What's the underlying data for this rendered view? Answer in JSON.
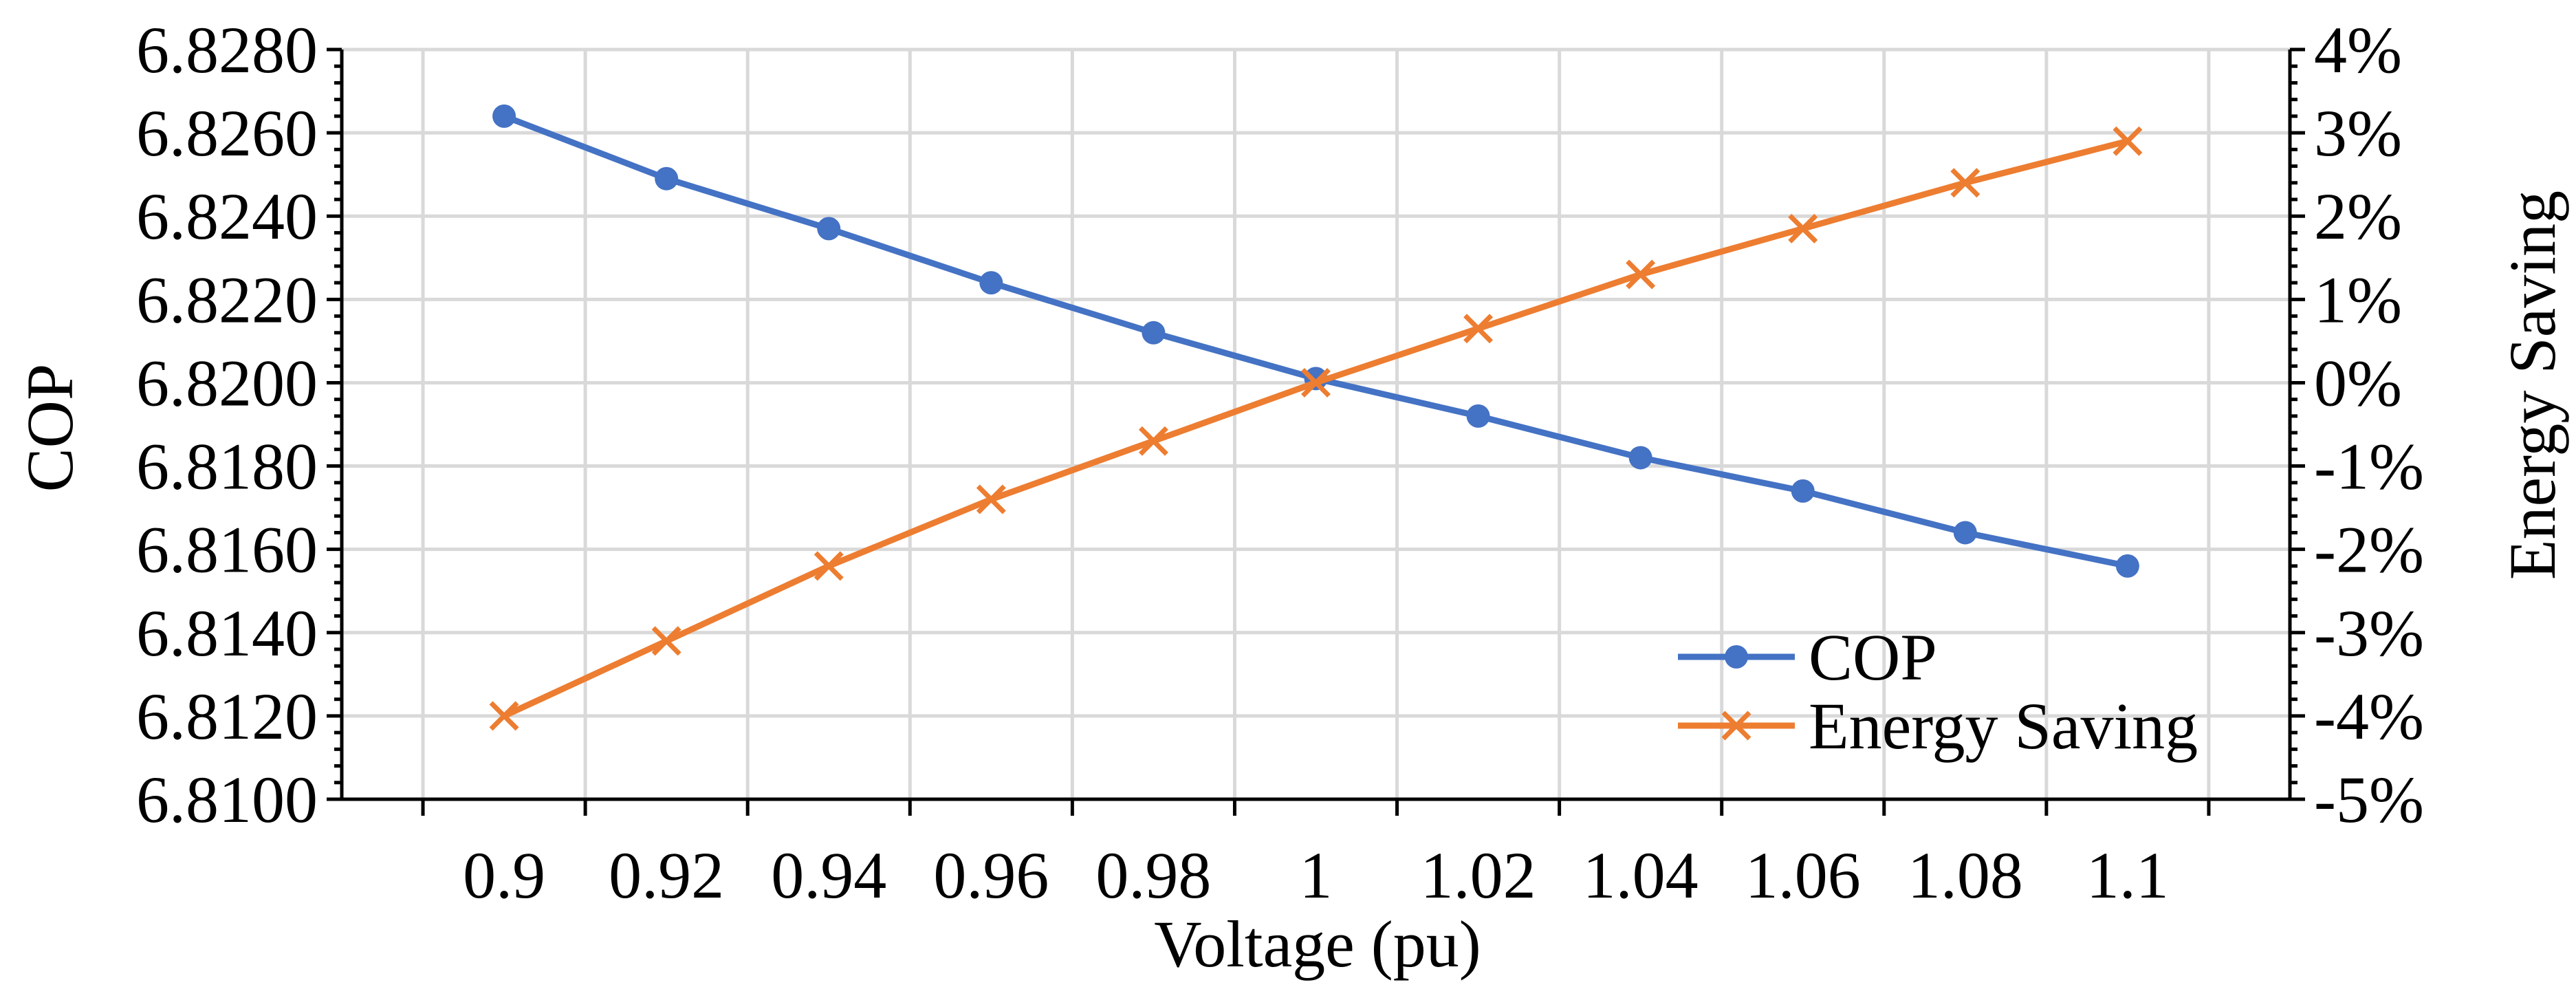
{
  "chart_data": {
    "type": "line",
    "title": "",
    "xlabel": "Voltage (pu)",
    "ylabel": "COP",
    "y2label": "Energy Saving",
    "x": [
      0.9,
      0.92,
      0.94,
      0.96,
      0.98,
      1,
      1.02,
      1.04,
      1.06,
      1.08,
      1.1
    ],
    "x_tick_labels": [
      "0.9",
      "0.92",
      "0.94",
      "0.96",
      "0.98",
      "1",
      "1.02",
      "1.04",
      "1.06",
      "1.08",
      "1.1"
    ],
    "ylim": [
      6.81,
      6.828
    ],
    "y_ticks": [
      "6.8280",
      "6.8260",
      "6.8240",
      "6.8220",
      "6.8200",
      "6.8180",
      "6.8160",
      "6.8140",
      "6.8120",
      "6.8100"
    ],
    "y2lim": [
      -5,
      4
    ],
    "y2_ticks": [
      "4%",
      "3%",
      "2%",
      "1%",
      "0%",
      "-1%",
      "-2%",
      "-3%",
      "-4%",
      "-5%"
    ],
    "series": [
      {
        "name": "COP",
        "axis": "left",
        "marker": "circle",
        "color": "#4472c4",
        "values": [
          6.8264,
          6.8249,
          6.8237,
          6.8224,
          6.8212,
          6.8201,
          6.8192,
          6.8182,
          6.8174,
          6.8164,
          6.8156
        ]
      },
      {
        "name": "Energy Saving",
        "axis": "right",
        "marker": "x",
        "color": "#ed7d31",
        "values": [
          -4.0,
          -3.1,
          -2.2,
          -1.4,
          -0.7,
          0.0,
          0.65,
          1.3,
          1.85,
          2.4,
          2.9
        ]
      }
    ],
    "grid": true,
    "legend_position": "bottom-right"
  }
}
